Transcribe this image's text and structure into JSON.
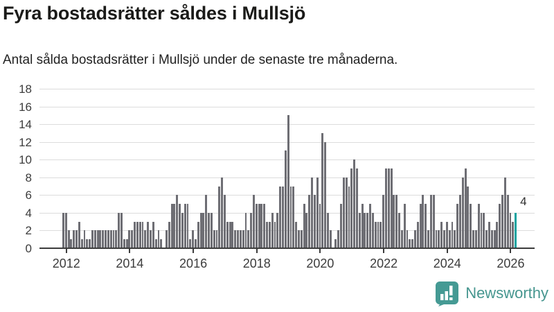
{
  "title": "Fyra bostadsrätter såldes i Mullsjö",
  "subtitle": "Antal sålda bostadsrätter i Mullsjö under de senaste tre månaderna.",
  "annotation": {
    "label": "4"
  },
  "branding": {
    "name": "Newsworthy"
  },
  "colors": {
    "bar": "#6e6e74",
    "highlight": "#0fa3a0",
    "grid": "#dcdcdc",
    "axis": "#3c3c3c",
    "logo": "#459a94",
    "brand_text": "#46968f"
  },
  "chart_data": {
    "type": "bar",
    "title": "Fyra bostadsrätter såldes i Mullsjö",
    "subtitle": "Antal sålda bostadsrätter i Mullsjö under de senaste tre månaderna.",
    "ylabel": "",
    "xlabel": "",
    "unit": "sålda bostadsrätter per 3 månader",
    "start_month": "2011-12",
    "values": [
      4,
      4,
      2,
      1,
      2,
      2,
      3,
      1,
      2,
      1,
      1,
      2,
      2,
      2,
      2,
      2,
      2,
      2,
      2,
      2,
      2,
      4,
      4,
      1,
      1,
      2,
      2,
      3,
      3,
      3,
      3,
      2,
      3,
      2,
      3,
      1,
      2,
      1,
      0,
      2,
      3,
      5,
      5,
      6,
      5,
      4,
      5,
      5,
      1,
      2,
      1,
      3,
      4,
      4,
      6,
      4,
      4,
      2,
      2,
      7,
      8,
      6,
      3,
      3,
      3,
      2,
      2,
      2,
      2,
      4,
      2,
      4,
      6,
      5,
      5,
      5,
      5,
      3,
      3,
      4,
      3,
      4,
      7,
      7,
      11,
      15,
      7,
      7,
      3,
      2,
      2,
      5,
      4,
      6,
      8,
      6,
      8,
      5,
      13,
      12,
      4,
      2,
      0,
      1,
      2,
      5,
      8,
      8,
      7,
      9,
      10,
      9,
      4,
      5,
      4,
      4,
      5,
      4,
      3,
      3,
      3,
      6,
      9,
      9,
      9,
      6,
      6,
      4,
      2,
      5,
      2,
      1,
      1,
      2,
      3,
      5,
      6,
      5,
      2,
      6,
      6,
      2,
      2,
      3,
      2,
      3,
      2,
      3,
      2,
      5,
      6,
      8,
      9,
      7,
      5,
      2,
      2,
      5,
      4,
      4,
      2,
      3,
      2,
      2,
      3,
      5,
      6,
      8,
      6,
      4,
      3,
      4
    ],
    "highlight_last": true,
    "highlight_last_value": 4,
    "y_ticks": [
      0,
      2,
      4,
      6,
      8,
      10,
      12,
      14,
      16,
      18
    ],
    "ylim": [
      0,
      18
    ],
    "grid": true,
    "x_ticks": [
      {
        "label": "2012",
        "month_index": 1
      },
      {
        "label": "2014",
        "month_index": 25
      },
      {
        "label": "2016",
        "month_index": 49
      },
      {
        "label": "2018",
        "month_index": 73
      },
      {
        "label": "2020",
        "month_index": 97
      },
      {
        "label": "2022",
        "month_index": 121
      },
      {
        "label": "2024",
        "month_index": 145
      },
      {
        "label": "2026",
        "month_index": 169
      }
    ]
  }
}
